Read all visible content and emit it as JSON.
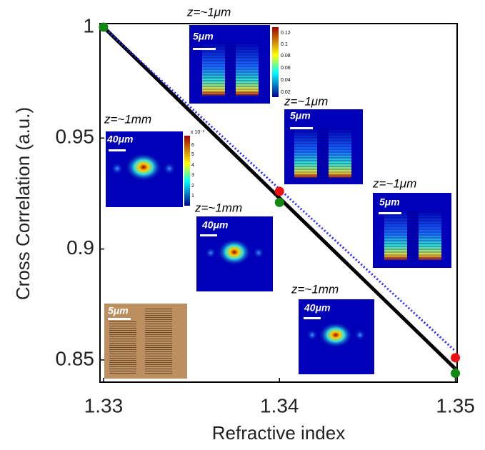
{
  "chart_data": {
    "type": "line",
    "xlabel": "Refractive index",
    "ylabel": "Cross Correlation (a.u.)",
    "xlim": [
      1.3298,
      1.3501
    ],
    "ylim": [
      0.84,
      1.0016
    ],
    "xticks": [
      1.33,
      1.34,
      1.35
    ],
    "yticks": [
      0.85,
      0.9,
      0.95,
      1
    ],
    "series": [
      {
        "mode": "line",
        "color": "#000000",
        "dashed": false,
        "x": [
          1.33,
          1.35
        ],
        "values": [
          1,
          0.846
        ]
      },
      {
        "mode": "line",
        "color": "#2a2aff",
        "dashed": true,
        "x": [
          1.33,
          1.35
        ],
        "values": [
          1,
          0.854
        ]
      },
      {
        "mode": "markers",
        "color": "#118811",
        "x": [
          1.33,
          1.34,
          1.35
        ],
        "values": [
          1,
          0.921,
          0.844
        ]
      },
      {
        "mode": "markers",
        "color": "#ee1111",
        "x": [
          1.34,
          1.35
        ],
        "values": [
          0.926,
          0.851
        ]
      }
    ],
    "insets": [
      {
        "label": "z=~1μm",
        "scale_bar": "5μm",
        "colorbar_ticks": [
          "0.12",
          "0.1",
          "0.08",
          "0.06",
          "0.04",
          "0.02"
        ]
      },
      {
        "label": "z=~1mm",
        "scale_bar": "40μm",
        "colorbar_ticks": [
          "x 10⁻³",
          "6",
          "5",
          "4",
          "3",
          "2",
          "1"
        ]
      },
      {
        "label": "z=~1mm",
        "scale_bar": "40μm"
      },
      {
        "label": "z=~1μm",
        "scale_bar": "5μm"
      },
      {
        "label": "z=~1μm",
        "scale_bar": "5μm"
      },
      {
        "label": "z=~1mm",
        "scale_bar": "40μm"
      },
      {
        "scale_bar": "5μm"
      }
    ]
  }
}
